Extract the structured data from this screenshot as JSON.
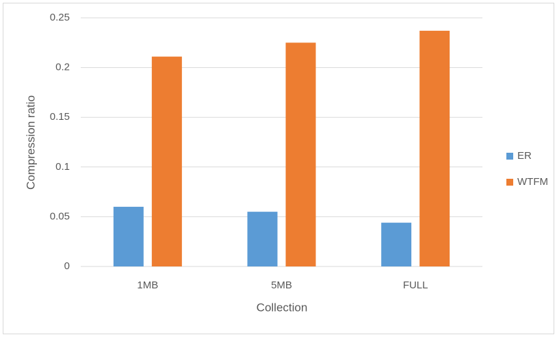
{
  "chart_data": {
    "type": "bar",
    "x_label": "Collection",
    "y_label": "Compression ratio",
    "categories": [
      "1MB",
      "5MB",
      "FULL"
    ],
    "series": [
      {
        "name": "ER",
        "color": "#5b9bd5",
        "values": [
          0.06,
          0.055,
          0.044
        ]
      },
      {
        "name": "WTFM",
        "color": "#ed7d31",
        "values": [
          0.211,
          0.225,
          0.237
        ]
      }
    ],
    "ylim": [
      0,
      0.25
    ],
    "yticks": [
      0,
      0.05,
      0.1,
      0.15,
      0.2,
      0.25
    ],
    "grid": true,
    "legend": "right"
  }
}
